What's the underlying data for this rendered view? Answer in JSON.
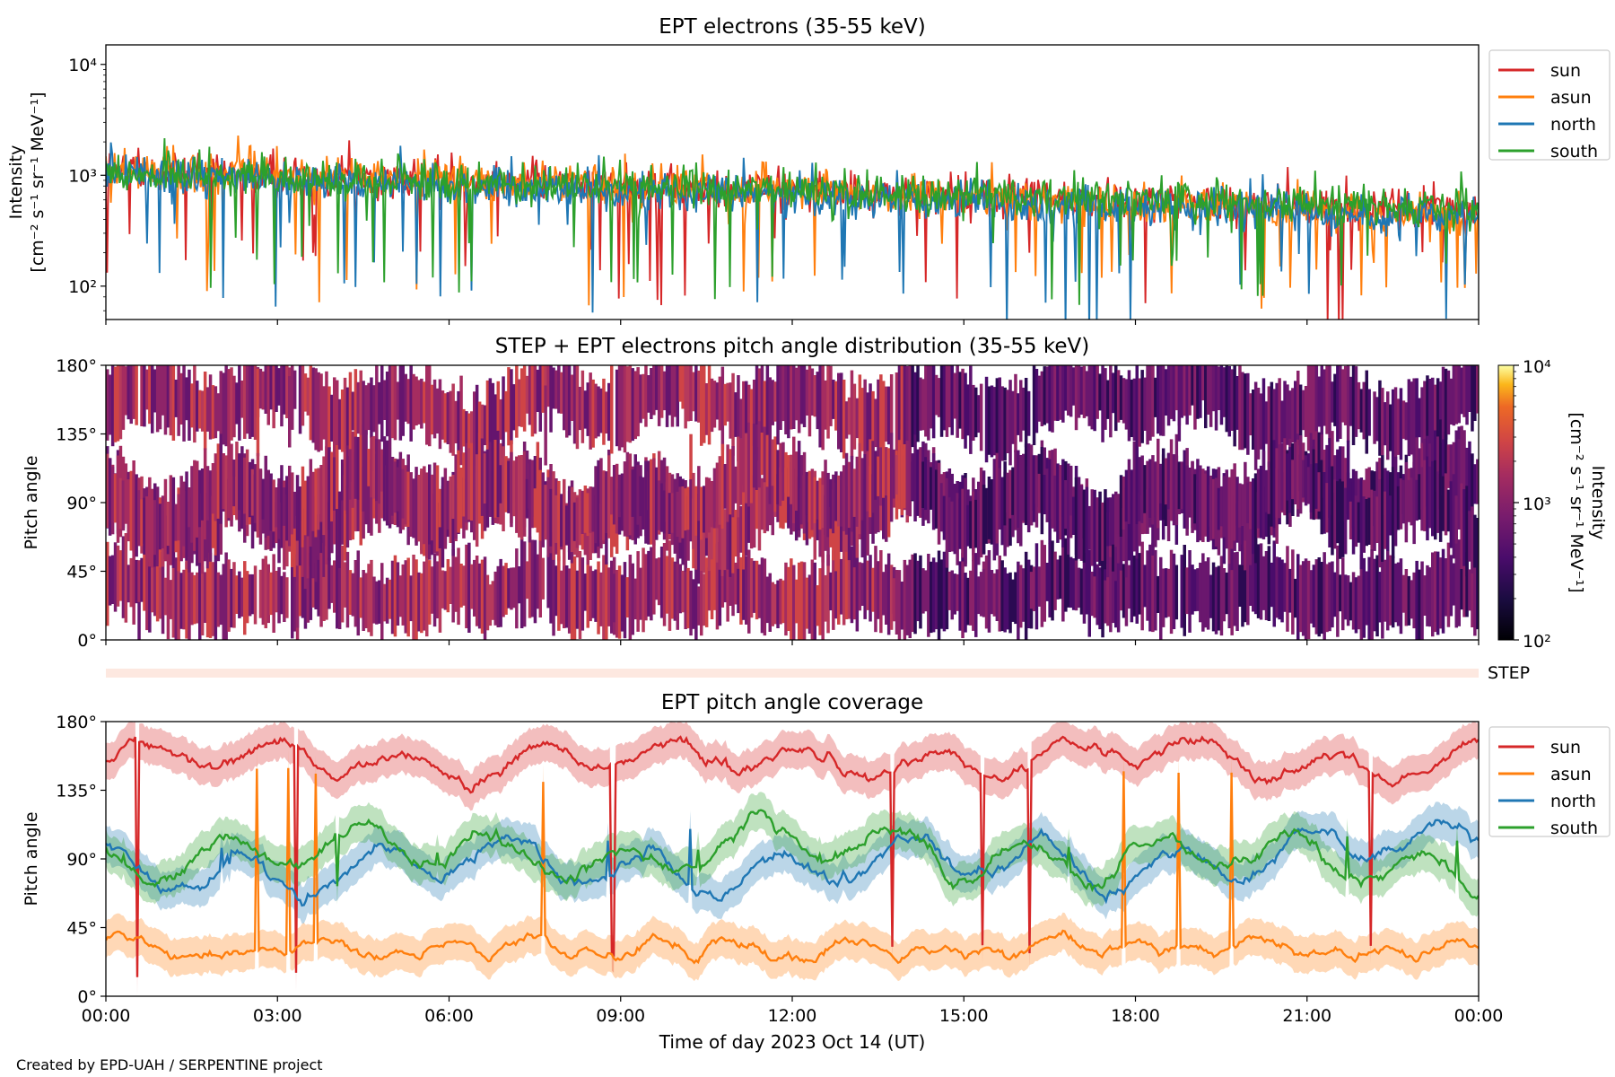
{
  "footer": "Created by EPD-UAH / SERPENTINE project",
  "x_axis": {
    "label": "Time of day 2023 Oct 14 (UT)",
    "ticks": [
      "00:00",
      "03:00",
      "06:00",
      "09:00",
      "12:00",
      "15:00",
      "18:00",
      "21:00",
      "00:00"
    ],
    "range_hours": [
      0,
      24
    ]
  },
  "colors": {
    "sun": "#d62728",
    "asun": "#ff7f0e",
    "north": "#1f77b4",
    "south": "#2ca02c",
    "step_band": "#fde8e0"
  },
  "chart_data": [
    {
      "type": "line",
      "title": "EPT electrons (35-55 keV)",
      "ylabel_line1": "Intensity",
      "ylabel_line2": "[cm⁻² s⁻¹ sr⁻¹ MeV⁻¹]",
      "yscale": "log",
      "ylim": [
        50,
        15000
      ],
      "y_ticks": [
        "10²",
        "10³",
        "10⁴"
      ],
      "legend_position": "outside-right",
      "series": [
        {
          "name": "sun",
          "color_key": "sun",
          "start": 1100,
          "end": 480
        },
        {
          "name": "asun",
          "color_key": "asun",
          "start": 1150,
          "end": 430
        },
        {
          "name": "north",
          "color_key": "north",
          "start": 1000,
          "end": 420
        },
        {
          "name": "south",
          "color_key": "south",
          "start": 1050,
          "end": 520
        }
      ]
    },
    {
      "type": "heatmap",
      "title": "STEP + EPT electrons pitch angle distribution (35-55 keV)",
      "ylabel": "Pitch angle",
      "ylim": [
        0,
        180
      ],
      "y_ticks": [
        "0°",
        "45°",
        "90°",
        "135°",
        "180°"
      ],
      "colorbar": {
        "label_line1": "Intensity",
        "label_line2": "[cm⁻² s⁻¹ sr⁻¹ MeV⁻¹]",
        "scale": "log",
        "range": [
          100,
          10000
        ],
        "ticks": [
          "10²",
          "10³",
          "10⁴"
        ]
      },
      "step_label": "STEP"
    },
    {
      "type": "line",
      "title": "EPT pitch angle coverage",
      "ylabel": "Pitch angle",
      "ylim": [
        0,
        180
      ],
      "y_ticks": [
        "0°",
        "45°",
        "90°",
        "135°",
        "180°"
      ],
      "legend_position": "outside-right",
      "series": [
        {
          "name": "sun",
          "color_key": "sun",
          "mean": 155
        },
        {
          "name": "asun",
          "color_key": "asun",
          "mean": 25
        },
        {
          "name": "north",
          "color_key": "north",
          "mean": 85
        },
        {
          "name": "south",
          "color_key": "south",
          "mean": 95
        }
      ]
    }
  ]
}
